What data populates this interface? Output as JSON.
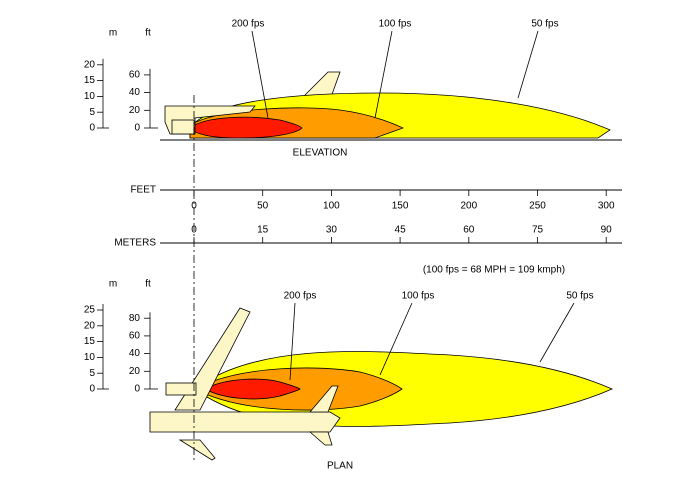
{
  "elevation": {
    "title": "ELEVATION",
    "m_unit": "m",
    "ft_unit": "ft",
    "m_ticks": [
      "20",
      "15",
      "10",
      "5",
      "0"
    ],
    "ft_ticks": [
      "60",
      "40",
      "20",
      "0"
    ],
    "contours": [
      "200 fps",
      "100 fps",
      "50 fps"
    ]
  },
  "scale": {
    "feet_label": "FEET",
    "feet_ticks": [
      "0",
      "50",
      "100",
      "150",
      "200",
      "250",
      "300"
    ],
    "meters_label": "METERS",
    "meters_ticks": [
      "0",
      "15",
      "30",
      "45",
      "60",
      "75",
      "90"
    ],
    "note": "(100 fps = 68 MPH = 109 kmph)"
  },
  "plan": {
    "title": "PLAN",
    "m_unit": "m",
    "ft_unit": "ft",
    "m_ticks": [
      "25",
      "20",
      "15",
      "10",
      "5",
      "0"
    ],
    "ft_ticks": [
      "80",
      "60",
      "40",
      "20",
      "0"
    ],
    "contours": [
      "200 fps",
      "100 fps",
      "50 fps"
    ]
  }
}
